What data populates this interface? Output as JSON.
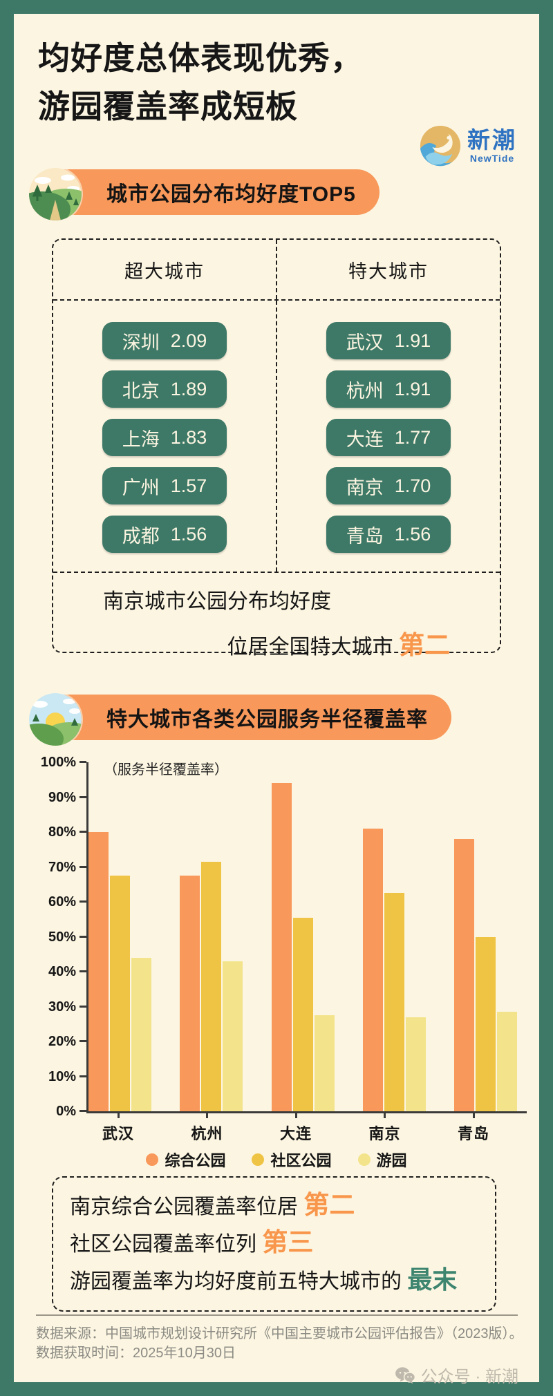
{
  "page": {
    "title_line1": "均好度总体表现优秀，",
    "title_line2": "游园覆盖率成短板"
  },
  "logo": {
    "name_cn": "新潮",
    "name_en": "NewTide"
  },
  "section1": {
    "badge": "城市公园分布均好度TOP5",
    "columns": [
      {
        "header": "超大城市",
        "items": [
          {
            "city": "深圳",
            "value": "2.09"
          },
          {
            "city": "北京",
            "value": "1.89"
          },
          {
            "city": "上海",
            "value": "1.83"
          },
          {
            "city": "广州",
            "value": "1.57"
          },
          {
            "city": "成都",
            "value": "1.56"
          }
        ]
      },
      {
        "header": "特大城市",
        "items": [
          {
            "city": "武汉",
            "value": "1.91"
          },
          {
            "city": "杭州",
            "value": "1.91"
          },
          {
            "city": "大连",
            "value": "1.77"
          },
          {
            "city": "南京",
            "value": "1.70"
          },
          {
            "city": "青岛",
            "value": "1.56"
          }
        ]
      }
    ],
    "note_line1": "南京城市公园分布均好度",
    "note_line2_prefix": "位居全国特大城市",
    "note_line2_highlight": "第二"
  },
  "section2": {
    "badge": "特大城市各类公园服务半径覆盖率"
  },
  "chart_data": {
    "type": "bar",
    "title": "特大城市各类公园服务半径覆盖率",
    "axis_label": "（服务半径覆盖率）",
    "categories": [
      "武汉",
      "杭州",
      "大连",
      "南京",
      "青岛"
    ],
    "series": [
      {
        "name": "综合公园",
        "color": "#F8985A",
        "values": [
          80,
          67.5,
          94,
          81,
          78
        ]
      },
      {
        "name": "社区公园",
        "color": "#EFC445",
        "values": [
          67.5,
          71.5,
          55.5,
          62.5,
          50
        ]
      },
      {
        "name": "游园",
        "color": "#F3E48C",
        "values": [
          44,
          43,
          27.5,
          27,
          28.5
        ]
      }
    ],
    "ylim": [
      0,
      100
    ],
    "y_ticks": [
      "0%",
      "10%",
      "20%",
      "30%",
      "40%",
      "50%",
      "60%",
      "70%",
      "80%",
      "90%",
      "100%"
    ],
    "grid": false,
    "legend_position": "bottom"
  },
  "conclusion": {
    "line1_text": "南京综合公园覆盖率位居 ",
    "line1_highlight": "第二",
    "line2_text": "社区公园覆盖率位列 ",
    "line2_highlight": "第三",
    "line3_text": "游园覆盖率为均好度前五特大城市的 ",
    "line3_highlight": "最末"
  },
  "footer": {
    "source": "数据来源：中国城市规划设计研究所《中国主要城市公园评估报告》（2023版）。",
    "time": "数据获取时间：2025年10月30日",
    "credit": "公众号 · 新潮"
  },
  "colors": {
    "frame_green": "#3E7968",
    "background_cream": "#FCF5E1",
    "badge_orange": "#F8985A",
    "pill_green": "#3E7968",
    "highlight_orange": "#F8964B",
    "highlight_teal": "#3E8570",
    "logo_blue": "#2E72C2"
  }
}
